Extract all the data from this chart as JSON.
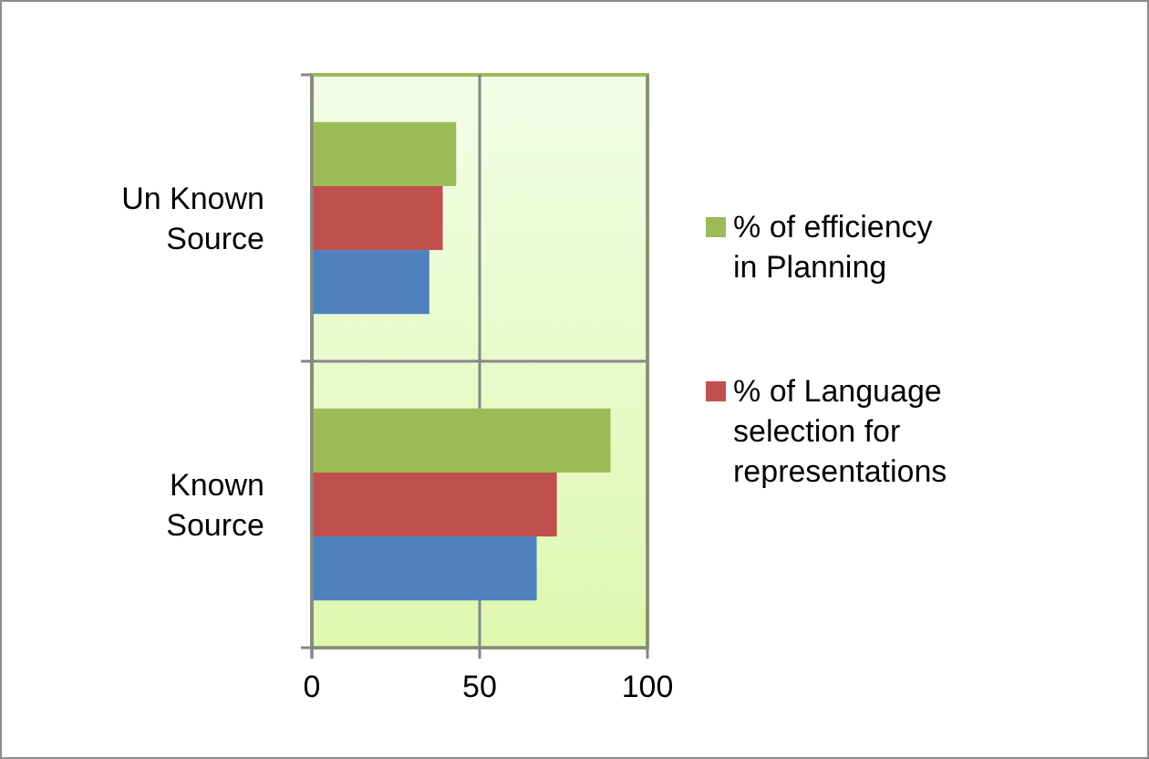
{
  "chart_data": {
    "type": "bar",
    "orientation": "horizontal",
    "categories": [
      "Un Known Source",
      "Known Source"
    ],
    "series": [
      {
        "color": "#4f81bd",
        "values": [
          35,
          67
        ]
      },
      {
        "name": "% of Language selection for representations",
        "color": "#c0504d",
        "values": [
          39,
          73
        ]
      },
      {
        "name": "% of efficiency in Planning",
        "color": "#9bbb59",
        "values": [
          43,
          89
        ]
      }
    ],
    "xlim": [
      0,
      100
    ],
    "xticks": [
      0,
      50,
      100
    ],
    "grid": "x",
    "legend": "right"
  }
}
